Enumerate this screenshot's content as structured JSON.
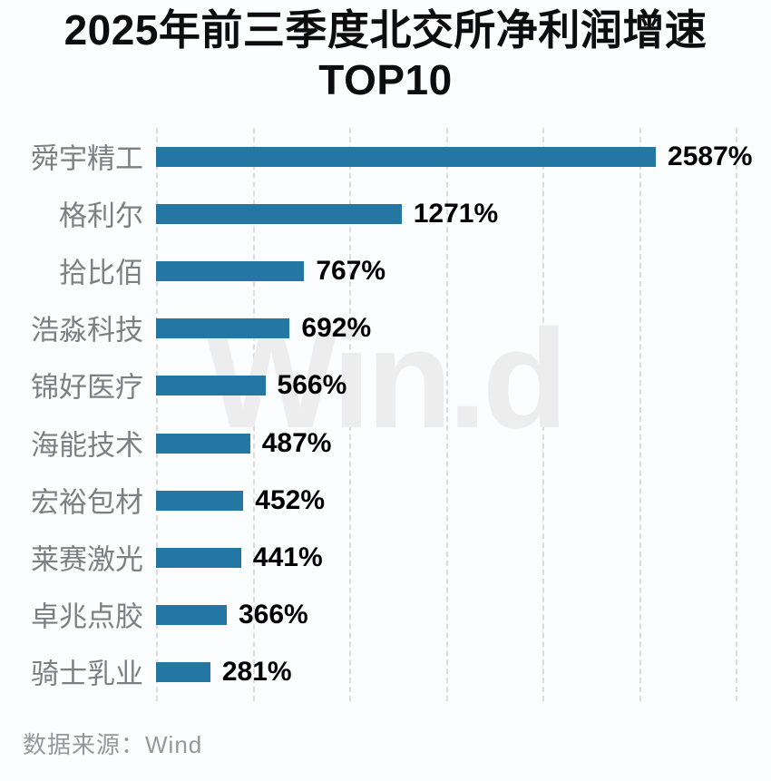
{
  "page": {
    "background": "#fbfdfe"
  },
  "header": {
    "title_line1": "2025年前三季度北交所净利润增速",
    "title_line2": "TOP10"
  },
  "watermark": {
    "text": "Win.d"
  },
  "footer": {
    "source": "数据来源：Wind"
  },
  "colors": {
    "bar": "#2577a3",
    "category_label": "#7f7f7f",
    "value_label": "#000000",
    "gridline": "#dadcde",
    "watermark": "#ededed",
    "source_text": "#979797"
  },
  "chart_data": {
    "type": "bar",
    "orientation": "horizontal",
    "title": "2025年前三季度北交所净利润增速 TOP10",
    "categories": [
      "舜宇精工",
      "格利尔",
      "拾比佰",
      "浩淼科技",
      "锦好医疗",
      "海能技术",
      "宏裕包材",
      "莱赛激光",
      "卓兆点胶",
      "骑士乳业"
    ],
    "values": [
      2587,
      1271,
      767,
      692,
      566,
      487,
      452,
      441,
      366,
      281
    ],
    "labels": [
      "2587%",
      "1271%",
      "767%",
      "692%",
      "566%",
      "487%",
      "452%",
      "441%",
      "366%",
      "281%"
    ],
    "unit": "%",
    "xlabel": "",
    "ylabel": "",
    "xlim": [
      0,
      3000
    ],
    "gridlines": [
      0,
      500,
      1000,
      1500,
      2000,
      2500,
      3000
    ],
    "grid": "vertical-dashed",
    "legend": false,
    "sort": "descending",
    "source": "数据来源：Wind",
    "watermark": "Win.d"
  }
}
